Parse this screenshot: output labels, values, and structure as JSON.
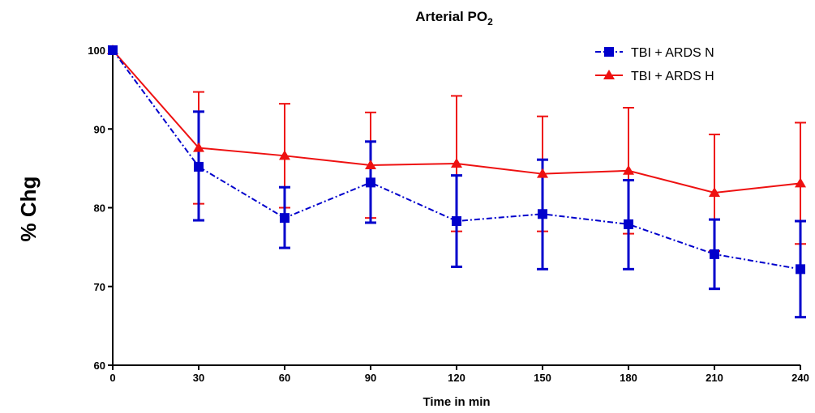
{
  "chart_data": {
    "type": "line",
    "title": "Arterial PO",
    "title_subscript": "2",
    "xlabel": "Time in min",
    "ylabel": "% Chg",
    "x": [
      0,
      30,
      60,
      90,
      120,
      150,
      180,
      210,
      240
    ],
    "xlim": [
      0,
      240
    ],
    "ylim": [
      60,
      100
    ],
    "y_ticks": [
      60,
      70,
      80,
      90,
      100
    ],
    "grid": false,
    "legend_position": "top-right",
    "series": [
      {
        "name": "TBI + ARDS N",
        "color": "#0000cc",
        "marker": "square",
        "line_style": "dash-dot",
        "values": [
          100,
          85.2,
          78.7,
          83.2,
          78.3,
          79.2,
          77.9,
          74.1,
          72.2
        ],
        "error_upper": [
          100,
          92.2,
          82.6,
          88.4,
          84.1,
          86.1,
          83.5,
          78.5,
          78.3
        ],
        "error_lower": [
          100,
          78.4,
          74.9,
          78.1,
          72.5,
          72.2,
          72.2,
          69.7,
          66.1
        ]
      },
      {
        "name": "TBI + ARDS H",
        "color": "#ee1111",
        "marker": "triangle",
        "line_style": "solid",
        "values": [
          100,
          87.6,
          86.6,
          85.4,
          85.6,
          84.3,
          84.7,
          81.9,
          83.1
        ],
        "error_upper": [
          100,
          94.7,
          93.2,
          92.1,
          94.2,
          91.6,
          92.7,
          89.3,
          90.8
        ],
        "error_lower": [
          100,
          80.5,
          80.0,
          78.7,
          77.0,
          77.0,
          76.7,
          74.5,
          75.4
        ]
      }
    ]
  }
}
